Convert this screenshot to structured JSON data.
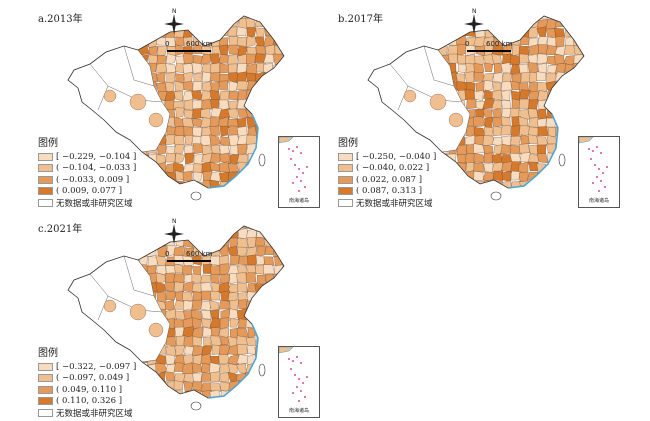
{
  "panels": [
    {
      "title": "a.2013年",
      "legend_title": "图例",
      "legend_items": [
        {
          "label": "[ −0.229, −0.104 ]",
          "color": "#f7dcc0"
        },
        {
          "label": "( −0.104, −0.033 ]",
          "color": "#efbf90"
        },
        {
          "label": "( −0.033, 0.009 ]",
          "color": "#e39a5a"
        },
        {
          "label": "( 0.009, 0.077 ]",
          "color": "#d57a2c"
        }
      ],
      "nodata_label": "无数据或非研究区域",
      "scale_zero": "0",
      "scale_label": "600 km",
      "north": "N",
      "inset_label": "南海诸岛"
    },
    {
      "title": "b.2017年",
      "legend_title": "图例",
      "legend_items": [
        {
          "label": "[ −0.250, −0.040 ]",
          "color": "#f7dcc0"
        },
        {
          "label": "( −0.040, 0.022 ]",
          "color": "#efbf90"
        },
        {
          "label": "( 0.022, 0.087 ]",
          "color": "#e39a5a"
        },
        {
          "label": "( 0.087, 0.313 ]",
          "color": "#d57a2c"
        }
      ],
      "nodata_label": "无数据或非研究区域",
      "scale_zero": "0",
      "scale_label": "600 km",
      "north": "N",
      "inset_label": "南海诸岛"
    },
    {
      "title": "c.2021年",
      "legend_title": "图例",
      "legend_items": [
        {
          "label": "[ −0.322, −0.097 ]",
          "color": "#f7dcc0"
        },
        {
          "label": "( −0.097, 0.049 ]",
          "color": "#efbf90"
        },
        {
          "label": "( 0.049, 0.110 ]",
          "color": "#e39a5a"
        },
        {
          "label": "( 0.110, 0.326 ]",
          "color": "#d57a2c"
        }
      ],
      "nodata_label": "无数据或非研究区域",
      "scale_zero": "0",
      "scale_label": "600 km",
      "north": "N",
      "inset_label": "南海诸岛"
    }
  ],
  "colors": {
    "nodata": "#ffffff",
    "border": "#333333",
    "coast": "#4aa3d8",
    "islands": "#c2188a"
  }
}
